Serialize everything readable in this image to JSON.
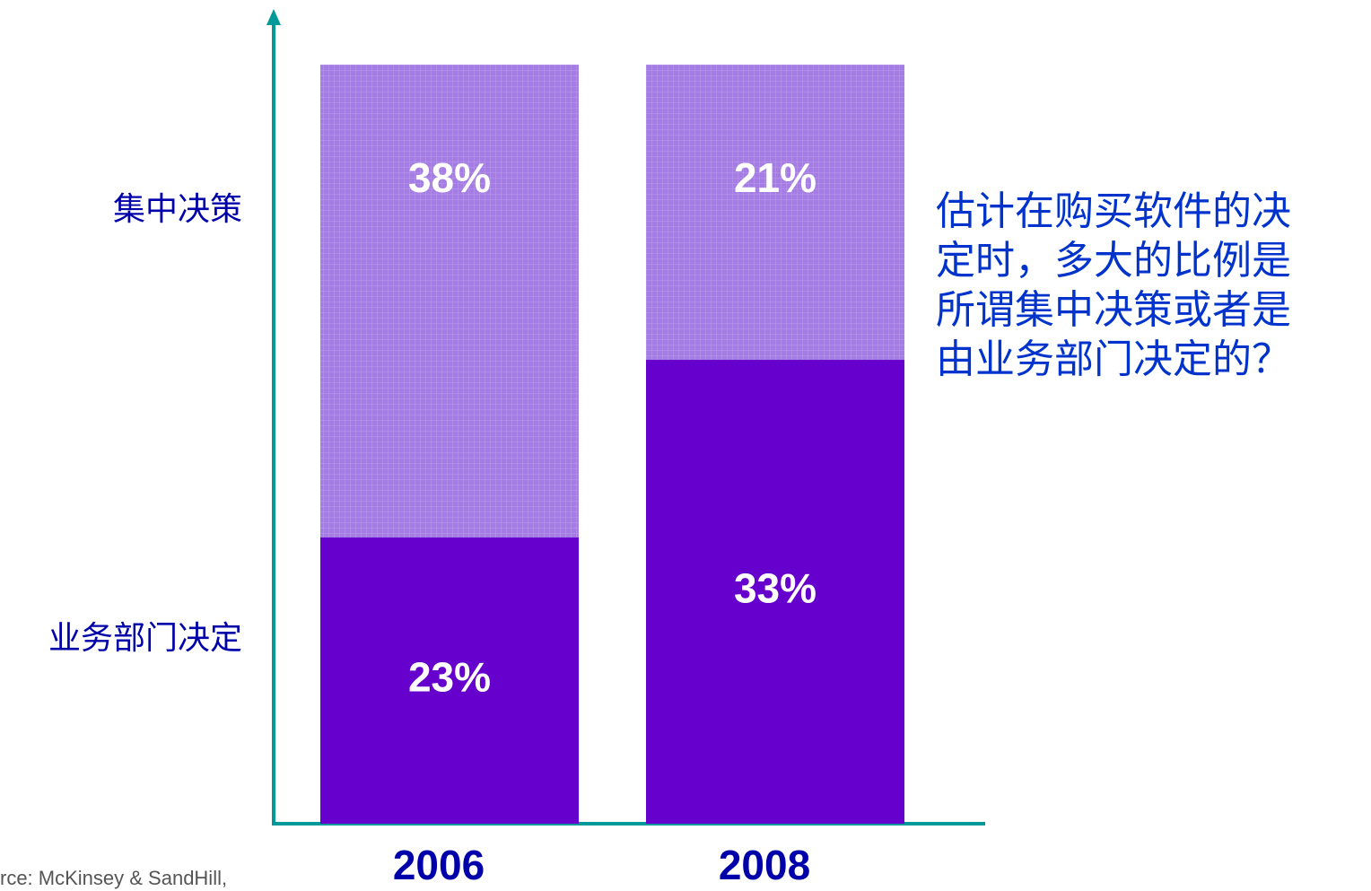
{
  "chart_data": {
    "type": "bar",
    "stacked": true,
    "normalize": true,
    "categories": [
      "2006",
      "2008"
    ],
    "series": [
      {
        "name": "业务部门决定",
        "color": "#6600cc",
        "values": [
          23,
          33
        ]
      },
      {
        "name": "集中决策",
        "color": "#a57be6",
        "values": [
          38,
          21
        ]
      }
    ],
    "value_labels": [
      [
        "23%",
        "33%"
      ],
      [
        "38%",
        "21%"
      ]
    ],
    "annotation": [
      "估计在购买软件的决",
      "定时，多大的比例是",
      "所谓集中决策或者是",
      "由业务部门决定的？"
    ],
    "source": "rce: McKinsey & SandHill,",
    "axis_color": "#009999"
  }
}
